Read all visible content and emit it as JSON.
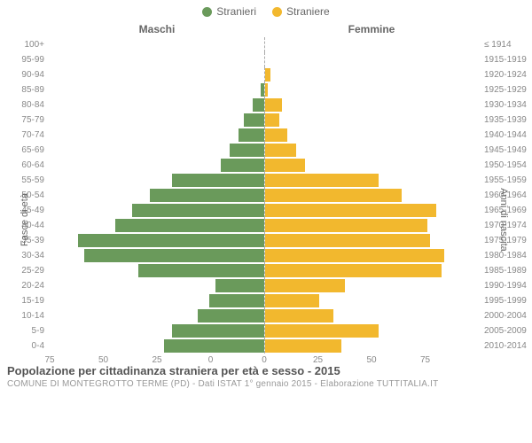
{
  "chart": {
    "type": "population-pyramid",
    "legend": [
      {
        "label": "Stranieri",
        "color": "#6a9a5b"
      },
      {
        "label": "Straniere",
        "color": "#f2b82e"
      }
    ],
    "left_header": "Maschi",
    "right_header": "Femmine",
    "left_axis_title": "Fasce di età",
    "right_axis_title": "Anni di nascita",
    "x_max": 75,
    "x_ticks": [
      0,
      25,
      50,
      75
    ],
    "background_color": "#ffffff",
    "grid_color": "#e8e8e8",
    "male_color": "#6a9a5b",
    "female_color": "#f2b82e",
    "label_fontsize": 10,
    "rows": [
      {
        "age": "100+",
        "birth": "≤ 1914",
        "m": 0,
        "f": 0
      },
      {
        "age": "95-99",
        "birth": "1915-1919",
        "m": 0,
        "f": 0
      },
      {
        "age": "90-94",
        "birth": "1920-1924",
        "m": 0,
        "f": 2
      },
      {
        "age": "85-89",
        "birth": "1925-1929",
        "m": 1,
        "f": 1
      },
      {
        "age": "80-84",
        "birth": "1930-1934",
        "m": 4,
        "f": 6
      },
      {
        "age": "75-79",
        "birth": "1935-1939",
        "m": 7,
        "f": 5
      },
      {
        "age": "70-74",
        "birth": "1940-1944",
        "m": 9,
        "f": 8
      },
      {
        "age": "65-69",
        "birth": "1945-1949",
        "m": 12,
        "f": 11
      },
      {
        "age": "60-64",
        "birth": "1950-1954",
        "m": 15,
        "f": 14
      },
      {
        "age": "55-59",
        "birth": "1955-1959",
        "m": 32,
        "f": 40
      },
      {
        "age": "50-54",
        "birth": "1960-1964",
        "m": 40,
        "f": 48
      },
      {
        "age": "45-49",
        "birth": "1965-1969",
        "m": 46,
        "f": 60
      },
      {
        "age": "40-44",
        "birth": "1970-1974",
        "m": 52,
        "f": 57
      },
      {
        "age": "35-39",
        "birth": "1975-1979",
        "m": 65,
        "f": 58
      },
      {
        "age": "30-34",
        "birth": "1980-1984",
        "m": 63,
        "f": 63
      },
      {
        "age": "25-29",
        "birth": "1985-1989",
        "m": 44,
        "f": 62
      },
      {
        "age": "20-24",
        "birth": "1990-1994",
        "m": 17,
        "f": 28
      },
      {
        "age": "15-19",
        "birth": "1995-1999",
        "m": 19,
        "f": 19
      },
      {
        "age": "10-14",
        "birth": "2000-2004",
        "m": 23,
        "f": 24
      },
      {
        "age": "5-9",
        "birth": "2005-2009",
        "m": 32,
        "f": 40
      },
      {
        "age": "0-4",
        "birth": "2010-2014",
        "m": 35,
        "f": 27
      }
    ]
  },
  "footer": {
    "title": "Popolazione per cittadinanza straniera per età e sesso - 2015",
    "subtitle": "COMUNE DI MONTEGROTTO TERME (PD) - Dati ISTAT 1° gennaio 2015 - Elaborazione TUTTITALIA.IT"
  }
}
